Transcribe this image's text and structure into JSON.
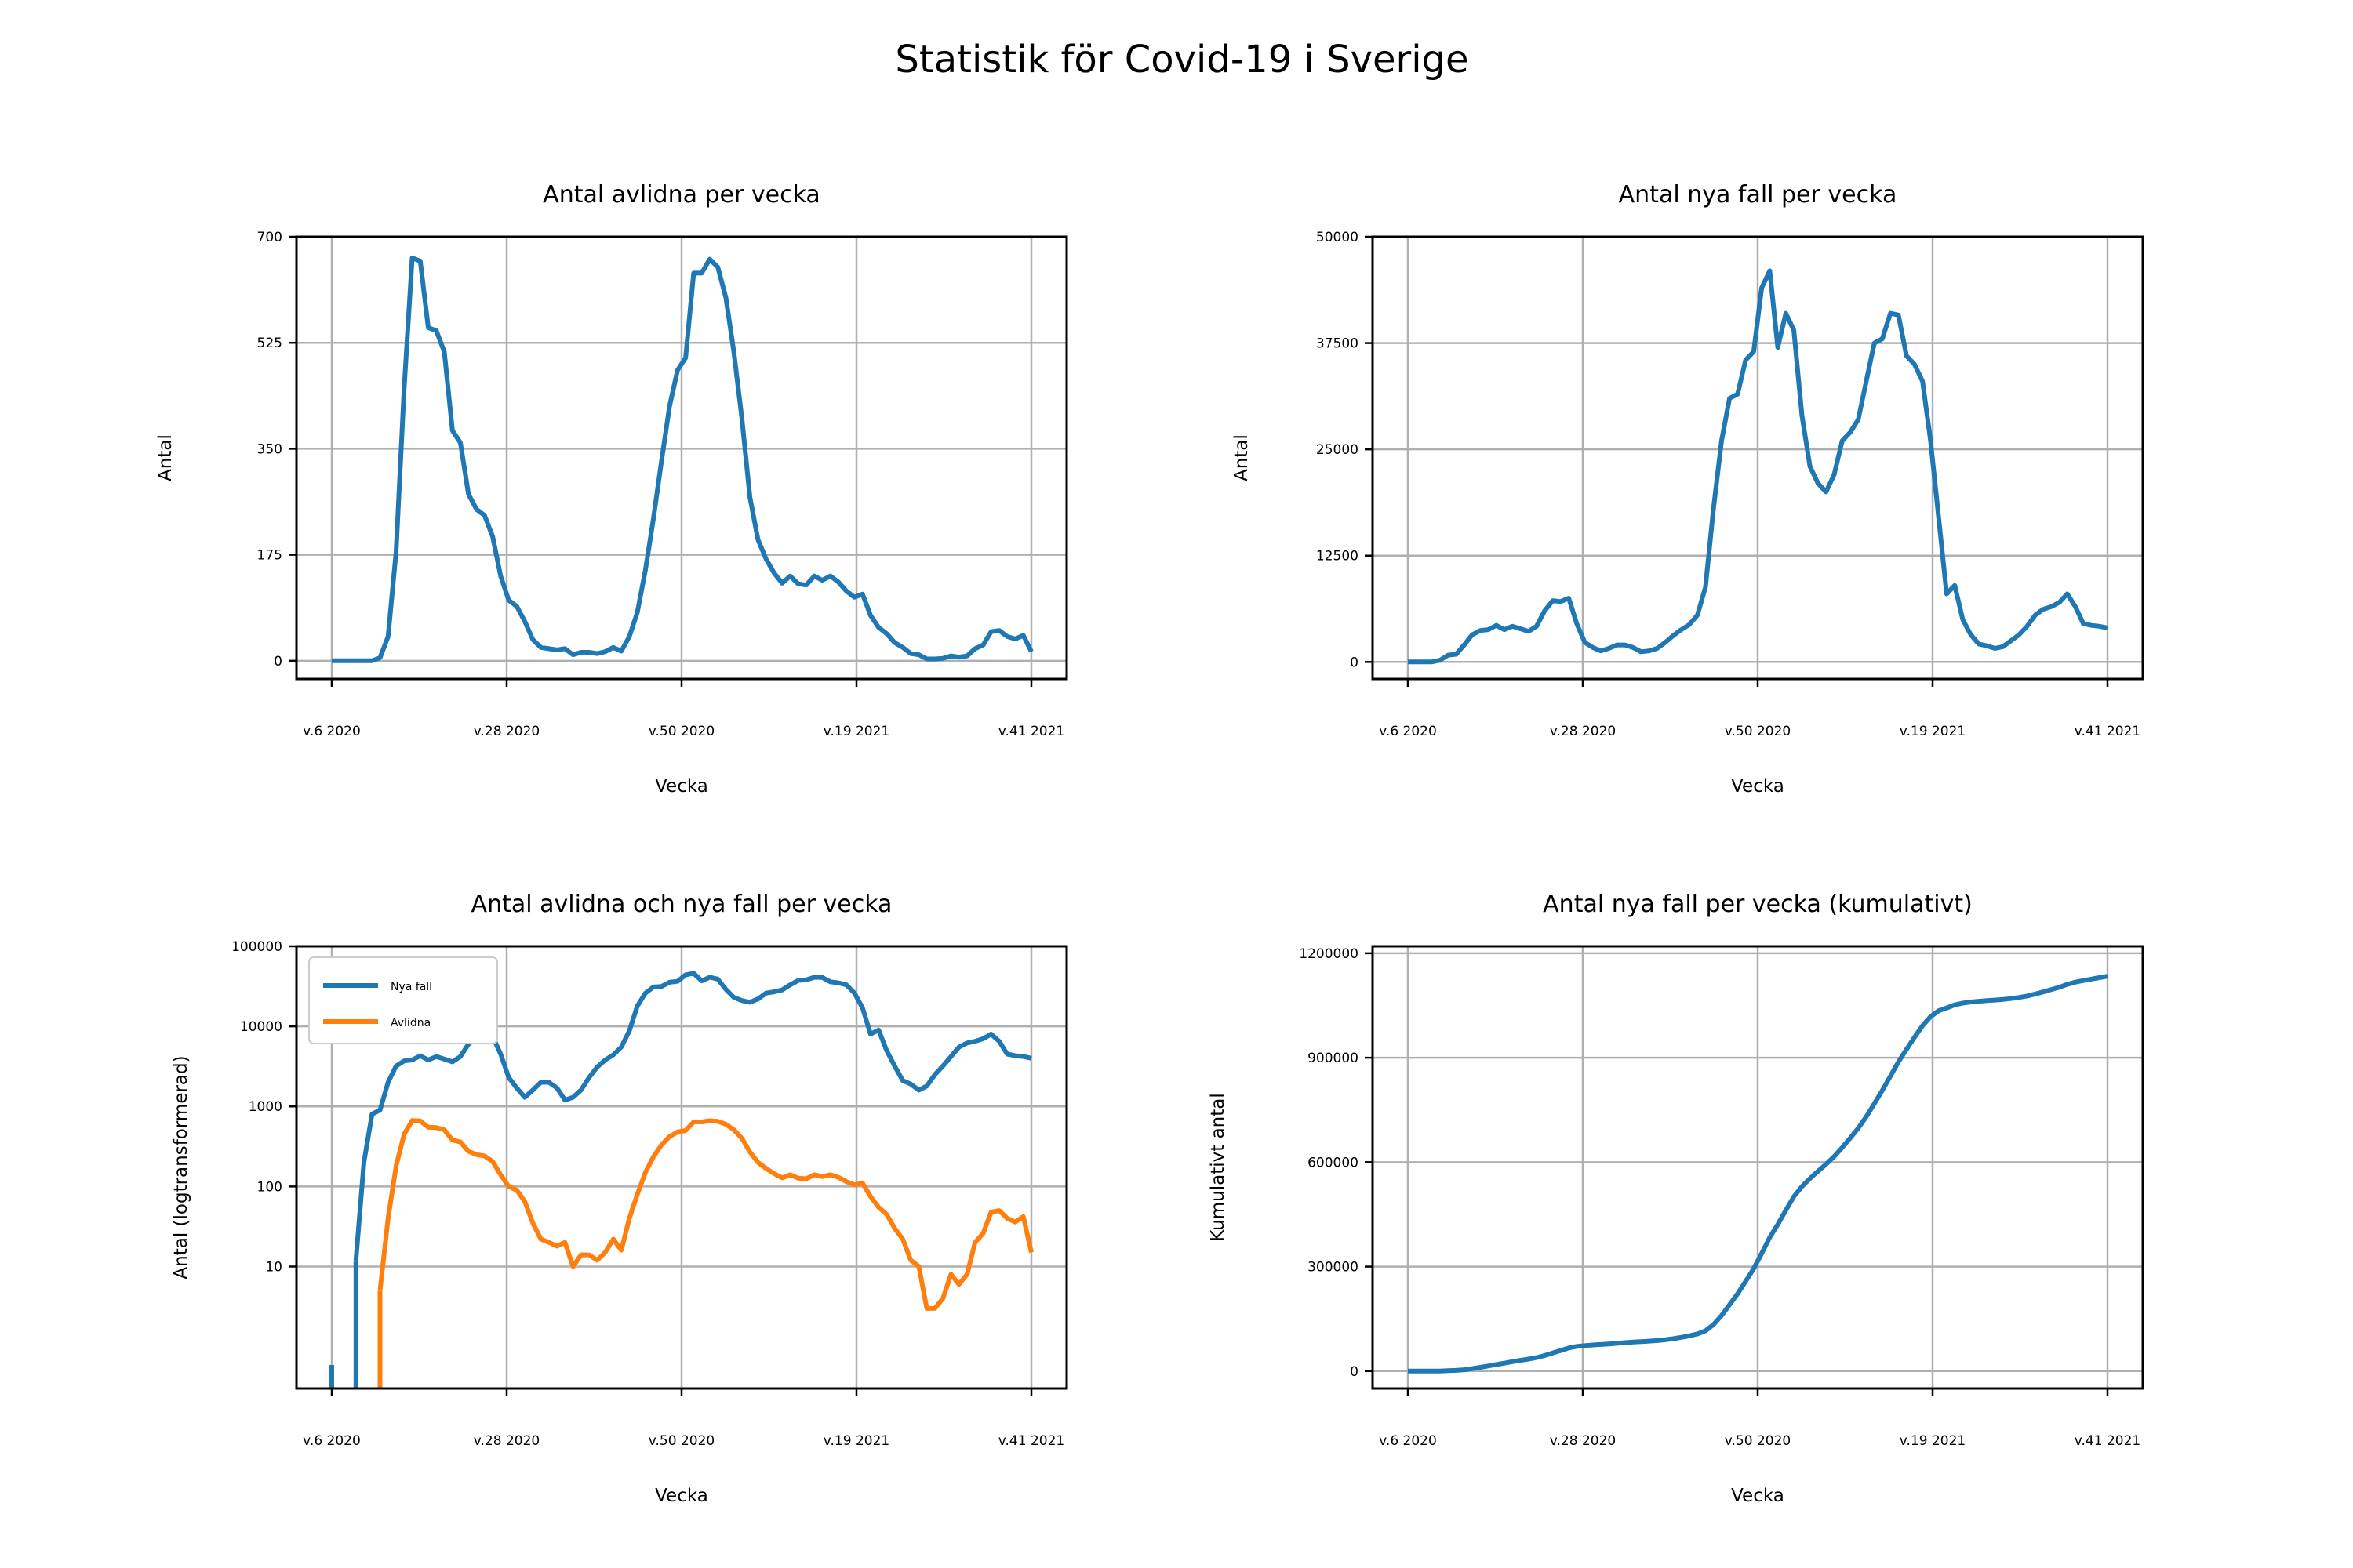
{
  "figure_title": "Statistik för Covid-19 i Sverige",
  "colors": {
    "series_blue": "#1f77b4",
    "series_orange": "#ff7f0e",
    "grid": "#b0b0b0"
  },
  "chart_data": [
    {
      "type": "line",
      "title": "Antal avlidna per vecka",
      "xlabel": "Vecka",
      "ylabel": "Antal",
      "xticks": [
        "v.6 2020",
        "v.28 2020",
        "v.50 2020",
        "v.19 2021",
        "v.41 2021"
      ],
      "yticks": [
        0,
        175,
        350,
        525,
        700
      ],
      "ylim": [
        -30,
        700
      ],
      "grid": true,
      "series": [
        {
          "values": [
            0,
            0,
            0,
            0,
            0,
            0,
            5,
            40,
            180,
            450,
            665,
            660,
            550,
            545,
            510,
            380,
            360,
            275,
            250,
            240,
            205,
            140,
            100,
            90,
            65,
            35,
            22,
            20,
            18,
            20,
            10,
            14,
            14,
            12,
            15,
            22,
            16,
            40,
            80,
            150,
            235,
            330,
            420,
            480,
            500,
            640,
            640,
            663,
            650,
            600,
            510,
            400,
            270,
            200,
            168,
            145,
            128,
            140,
            127,
            125,
            140,
            133,
            140,
            130,
            115,
            105,
            110,
            75,
            55,
            45,
            30,
            22,
            12,
            10,
            3,
            3,
            4,
            8,
            6,
            8,
            20,
            26,
            48,
            50,
            40,
            36,
            42,
            15
          ]
        }
      ]
    },
    {
      "type": "line",
      "title": "Antal nya fall per vecka",
      "xlabel": "Vecka",
      "ylabel": "Antal",
      "xticks": [
        "v.6 2020",
        "v.28 2020",
        "v.50 2020",
        "v.19 2021",
        "v.41 2021"
      ],
      "yticks": [
        0,
        12500,
        25000,
        37500,
        50000
      ],
      "ylim": [
        -2000,
        50000
      ],
      "grid": true,
      "series": [
        {
          "values": [
            0,
            0,
            0,
            12,
            200,
            800,
            900,
            2000,
            3200,
            3700,
            3800,
            4300,
            3800,
            4200,
            3900,
            3600,
            4200,
            6000,
            7200,
            7100,
            7500,
            4500,
            2300,
            1700,
            1300,
            1600,
            2000,
            2000,
            1700,
            1200,
            1300,
            1600,
            2300,
            3100,
            3800,
            4400,
            5500,
            8800,
            18000,
            26000,
            31000,
            31500,
            35500,
            36500,
            44000,
            46000,
            37000,
            41000,
            39000,
            29000,
            23000,
            21000,
            20000,
            22000,
            26000,
            27000,
            28500,
            33000,
            37500,
            38000,
            41000,
            40800,
            36000,
            35000,
            33000,
            26000,
            17000,
            8000,
            9000,
            5000,
            3200,
            2100,
            1900,
            1600,
            1800,
            2500,
            3200,
            4200,
            5500,
            6200,
            6500,
            7000,
            8000,
            6500,
            4500,
            4300,
            4200,
            4000
          ]
        }
      ]
    },
    {
      "type": "line",
      "title": "Antal avlidna och nya fall per vecka",
      "xlabel": "Vecka",
      "ylabel": "Antal (logtransformerad)",
      "xticks": [
        "v.6 2020",
        "v.28 2020",
        "v.50 2020",
        "v.19 2021",
        "v.41 2021"
      ],
      "yticks": [
        "10",
        "100",
        "1000",
        "10000",
        "100000"
      ],
      "yscale": "log",
      "ylim": [
        0.3,
        100000
      ],
      "grid": true,
      "legend": "top-left",
      "series": [
        {
          "name": "Nya fall",
          "values": [
            0,
            0,
            0,
            12,
            200,
            800,
            900,
            2000,
            3200,
            3700,
            3800,
            4300,
            3800,
            4200,
            3900,
            3600,
            4200,
            6000,
            7200,
            7100,
            7500,
            4500,
            2300,
            1700,
            1300,
            1600,
            2000,
            2000,
            1700,
            1200,
            1300,
            1600,
            2300,
            3100,
            3800,
            4400,
            5500,
            8800,
            18000,
            26000,
            31000,
            31500,
            35500,
            36500,
            44000,
            46000,
            37000,
            41000,
            39000,
            29000,
            23000,
            21000,
            20000,
            22000,
            26000,
            27000,
            28500,
            33000,
            37500,
            38000,
            41000,
            40800,
            36000,
            35000,
            33000,
            26000,
            17000,
            8000,
            9000,
            5000,
            3200,
            2100,
            1900,
            1600,
            1800,
            2500,
            3200,
            4200,
            5500,
            6200,
            6500,
            7000,
            8000,
            6500,
            4500,
            4300,
            4200,
            4000
          ]
        },
        {
          "name": "Avlidna",
          "values": [
            0,
            0,
            0,
            0,
            0,
            0,
            5,
            40,
            180,
            450,
            665,
            660,
            550,
            545,
            510,
            380,
            360,
            275,
            250,
            240,
            205,
            140,
            100,
            90,
            65,
            35,
            22,
            20,
            18,
            20,
            10,
            14,
            14,
            12,
            15,
            22,
            16,
            40,
            80,
            150,
            235,
            330,
            420,
            480,
            500,
            640,
            640,
            663,
            650,
            600,
            510,
            400,
            270,
            200,
            168,
            145,
            128,
            140,
            127,
            125,
            140,
            133,
            140,
            130,
            115,
            105,
            110,
            75,
            55,
            45,
            30,
            22,
            12,
            10,
            3,
            3,
            4,
            8,
            6,
            8,
            20,
            26,
            48,
            50,
            40,
            36,
            42,
            15
          ]
        }
      ]
    },
    {
      "type": "line",
      "title": "Antal nya fall per vecka (kumulativt)",
      "xlabel": "Vecka",
      "ylabel": "Kumulativt antal",
      "xticks": [
        "v.6 2020",
        "v.28 2020",
        "v.50 2020",
        "v.19 2021",
        "v.41 2021"
      ],
      "yticks": [
        0,
        300000,
        600000,
        900000,
        1200000
      ],
      "ylim": [
        -50000,
        1220000
      ],
      "grid": true,
      "series": [
        {
          "values": [
            0,
            0,
            0,
            12,
            212,
            1012,
            1912,
            3912,
            7112,
            10812,
            14612,
            18912,
            22712,
            26912,
            30812,
            34412,
            38612,
            44612,
            51812,
            58912,
            66412,
            70912,
            73212,
            74912,
            76212,
            77812,
            79812,
            81812,
            83512,
            84712,
            86012,
            87612,
            89912,
            93012,
            96812,
            101212,
            106712,
            115512,
            133512,
            159512,
            190512,
            222012,
            257512,
            294012,
            338012,
            384012,
            421012,
            462012,
            501012,
            530012,
            553012,
            574012,
            594012,
            616012,
            642012,
            669012,
            697512,
            730512,
            768012,
            806012,
            847012,
            887812,
            923812,
            958812,
            991812,
            1017812,
            1034812,
            1042812,
            1051812,
            1056812,
            1060012,
            1062112,
            1064012,
            1065612,
            1067412,
            1069912,
            1073112,
            1077312,
            1082812,
            1089012,
            1095512,
            1102512,
            1110512,
            1117012,
            1121512,
            1125812,
            1130012,
            1134012
          ]
        }
      ]
    }
  ]
}
